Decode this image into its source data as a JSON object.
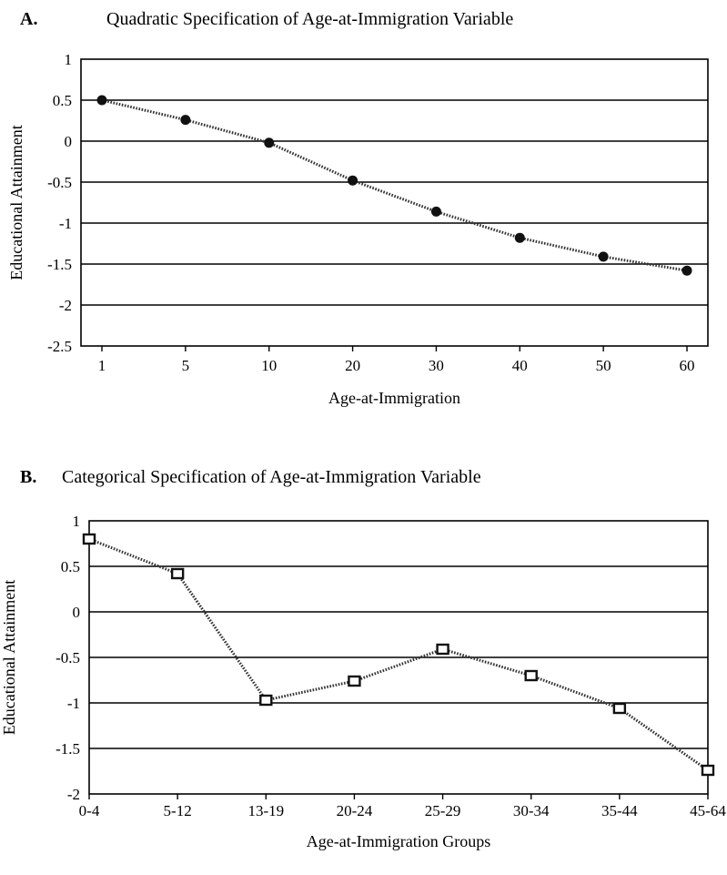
{
  "chart_data": [
    {
      "type": "line",
      "panel_label": "A.",
      "title": "Quadratic Specification of Age-at-Immigration Variable",
      "xlabel": "Age-at-Immigration",
      "ylabel": "Educational Attainment",
      "categories": [
        "1",
        "5",
        "10",
        "20",
        "30",
        "40",
        "50",
        "60"
      ],
      "values": [
        0.5,
        0.26,
        -0.02,
        -0.48,
        -0.86,
        -1.18,
        -1.41,
        -1.58
      ],
      "y_ticks": [
        "1",
        "0.5",
        "0",
        "-0.5",
        "-1",
        "-1.5",
        "-2",
        "-2.5"
      ],
      "ylim": [
        -2.5,
        1
      ],
      "marker": "filled-circle",
      "line_style": "dotted",
      "grid": "horizontal",
      "colors": {
        "series": "#333333",
        "marker": "#111111"
      }
    },
    {
      "type": "line",
      "panel_label": "B.",
      "title": "Categorical Specification of Age-at-Immigration Variable",
      "xlabel": "Age-at-Immigration Groups",
      "ylabel": "Educational Attainment",
      "categories": [
        "0-4",
        "5-12",
        "13-19",
        "20-24",
        "25-29",
        "30-34",
        "35-44",
        "45-64"
      ],
      "values": [
        0.8,
        0.42,
        -0.97,
        -0.76,
        -0.41,
        -0.7,
        -1.06,
        -1.74
      ],
      "y_ticks": [
        "1",
        "0.5",
        "0",
        "-0.5",
        "-1",
        "-1.5",
        "-2"
      ],
      "ylim": [
        -2,
        1
      ],
      "marker": "open-square",
      "line_style": "dotted",
      "grid": "horizontal",
      "colors": {
        "series": "#333333",
        "marker": "#111111"
      }
    }
  ]
}
